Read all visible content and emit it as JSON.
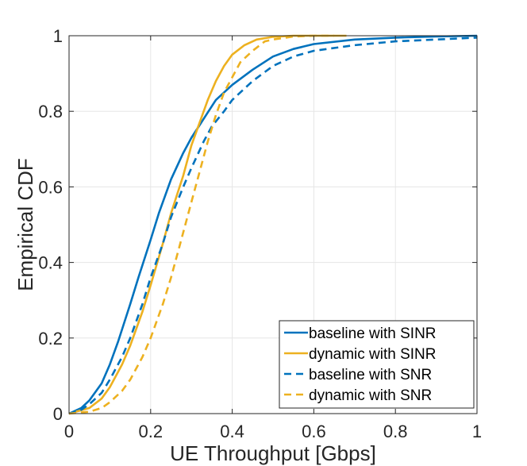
{
  "chart_data": {
    "type": "line",
    "title": "",
    "xlabel": "UE Throughput [Gbps]",
    "ylabel": "Empirical CDF",
    "xlim": [
      0,
      1
    ],
    "ylim": [
      0,
      1
    ],
    "grid": true,
    "legend_position": "bottom-right",
    "x_ticks": [
      0,
      0.2,
      0.4,
      0.6,
      0.8,
      1
    ],
    "x_tick_labels": [
      "0",
      "0.2",
      "0.4",
      "0.6",
      "0.8",
      "1"
    ],
    "y_ticks": [
      0,
      0.2,
      0.4,
      0.6,
      0.8,
      1
    ],
    "y_tick_labels": [
      "0",
      "0.2",
      "0.4",
      "0.6",
      "0.8",
      "1"
    ],
    "colors": {
      "blue": "#0072BD",
      "orange": "#EDB120",
      "axis": "#262626"
    },
    "series": [
      {
        "name": "baseline with SINR",
        "color": "#0072BD",
        "dash": "solid",
        "x": [
          0,
          0.03,
          0.05,
          0.08,
          0.1,
          0.12,
          0.15,
          0.17,
          0.2,
          0.22,
          0.25,
          0.28,
          0.3,
          0.33,
          0.36,
          0.4,
          0.45,
          0.5,
          0.55,
          0.6,
          0.7,
          0.8,
          0.9,
          1.0
        ],
        "y": [
          0,
          0.015,
          0.035,
          0.08,
          0.13,
          0.19,
          0.29,
          0.36,
          0.46,
          0.53,
          0.62,
          0.69,
          0.73,
          0.78,
          0.83,
          0.87,
          0.91,
          0.945,
          0.965,
          0.978,
          0.99,
          0.995,
          0.998,
          1.0
        ]
      },
      {
        "name": "dynamic with SINR",
        "color": "#EDB120",
        "dash": "solid",
        "x": [
          0,
          0.05,
          0.08,
          0.1,
          0.13,
          0.15,
          0.18,
          0.2,
          0.23,
          0.25,
          0.28,
          0.3,
          0.32,
          0.34,
          0.36,
          0.38,
          0.4,
          0.43,
          0.46,
          0.5,
          0.55,
          0.6,
          0.68
        ],
        "y": [
          0,
          0.015,
          0.04,
          0.07,
          0.13,
          0.18,
          0.27,
          0.34,
          0.45,
          0.53,
          0.63,
          0.71,
          0.77,
          0.83,
          0.88,
          0.92,
          0.95,
          0.975,
          0.99,
          0.997,
          1.0,
          1.0,
          1.0
        ]
      },
      {
        "name": "baseline with SNR",
        "color": "#0072BD",
        "dash": "dashed",
        "x": [
          0,
          0.03,
          0.05,
          0.08,
          0.1,
          0.13,
          0.15,
          0.18,
          0.2,
          0.23,
          0.25,
          0.28,
          0.3,
          0.33,
          0.35,
          0.38,
          0.4,
          0.45,
          0.5,
          0.55,
          0.6,
          0.7,
          0.8,
          0.9,
          1.0
        ],
        "y": [
          0,
          0.01,
          0.025,
          0.055,
          0.09,
          0.15,
          0.2,
          0.29,
          0.36,
          0.45,
          0.52,
          0.6,
          0.65,
          0.72,
          0.76,
          0.8,
          0.83,
          0.88,
          0.92,
          0.945,
          0.96,
          0.975,
          0.985,
          0.99,
          0.995
        ]
      },
      {
        "name": "dynamic with SNR",
        "color": "#EDB120",
        "dash": "dashed",
        "x": [
          0,
          0.05,
          0.08,
          0.1,
          0.13,
          0.15,
          0.18,
          0.2,
          0.23,
          0.25,
          0.27,
          0.3,
          0.32,
          0.34,
          0.36,
          0.38,
          0.4,
          0.42,
          0.45,
          0.48,
          0.5,
          0.55,
          0.6,
          0.65
        ],
        "y": [
          0,
          0.005,
          0.015,
          0.03,
          0.06,
          0.09,
          0.15,
          0.2,
          0.29,
          0.36,
          0.44,
          0.56,
          0.64,
          0.72,
          0.79,
          0.85,
          0.89,
          0.93,
          0.96,
          0.985,
          0.99,
          0.998,
          1.0,
          1.0
        ]
      }
    ]
  }
}
